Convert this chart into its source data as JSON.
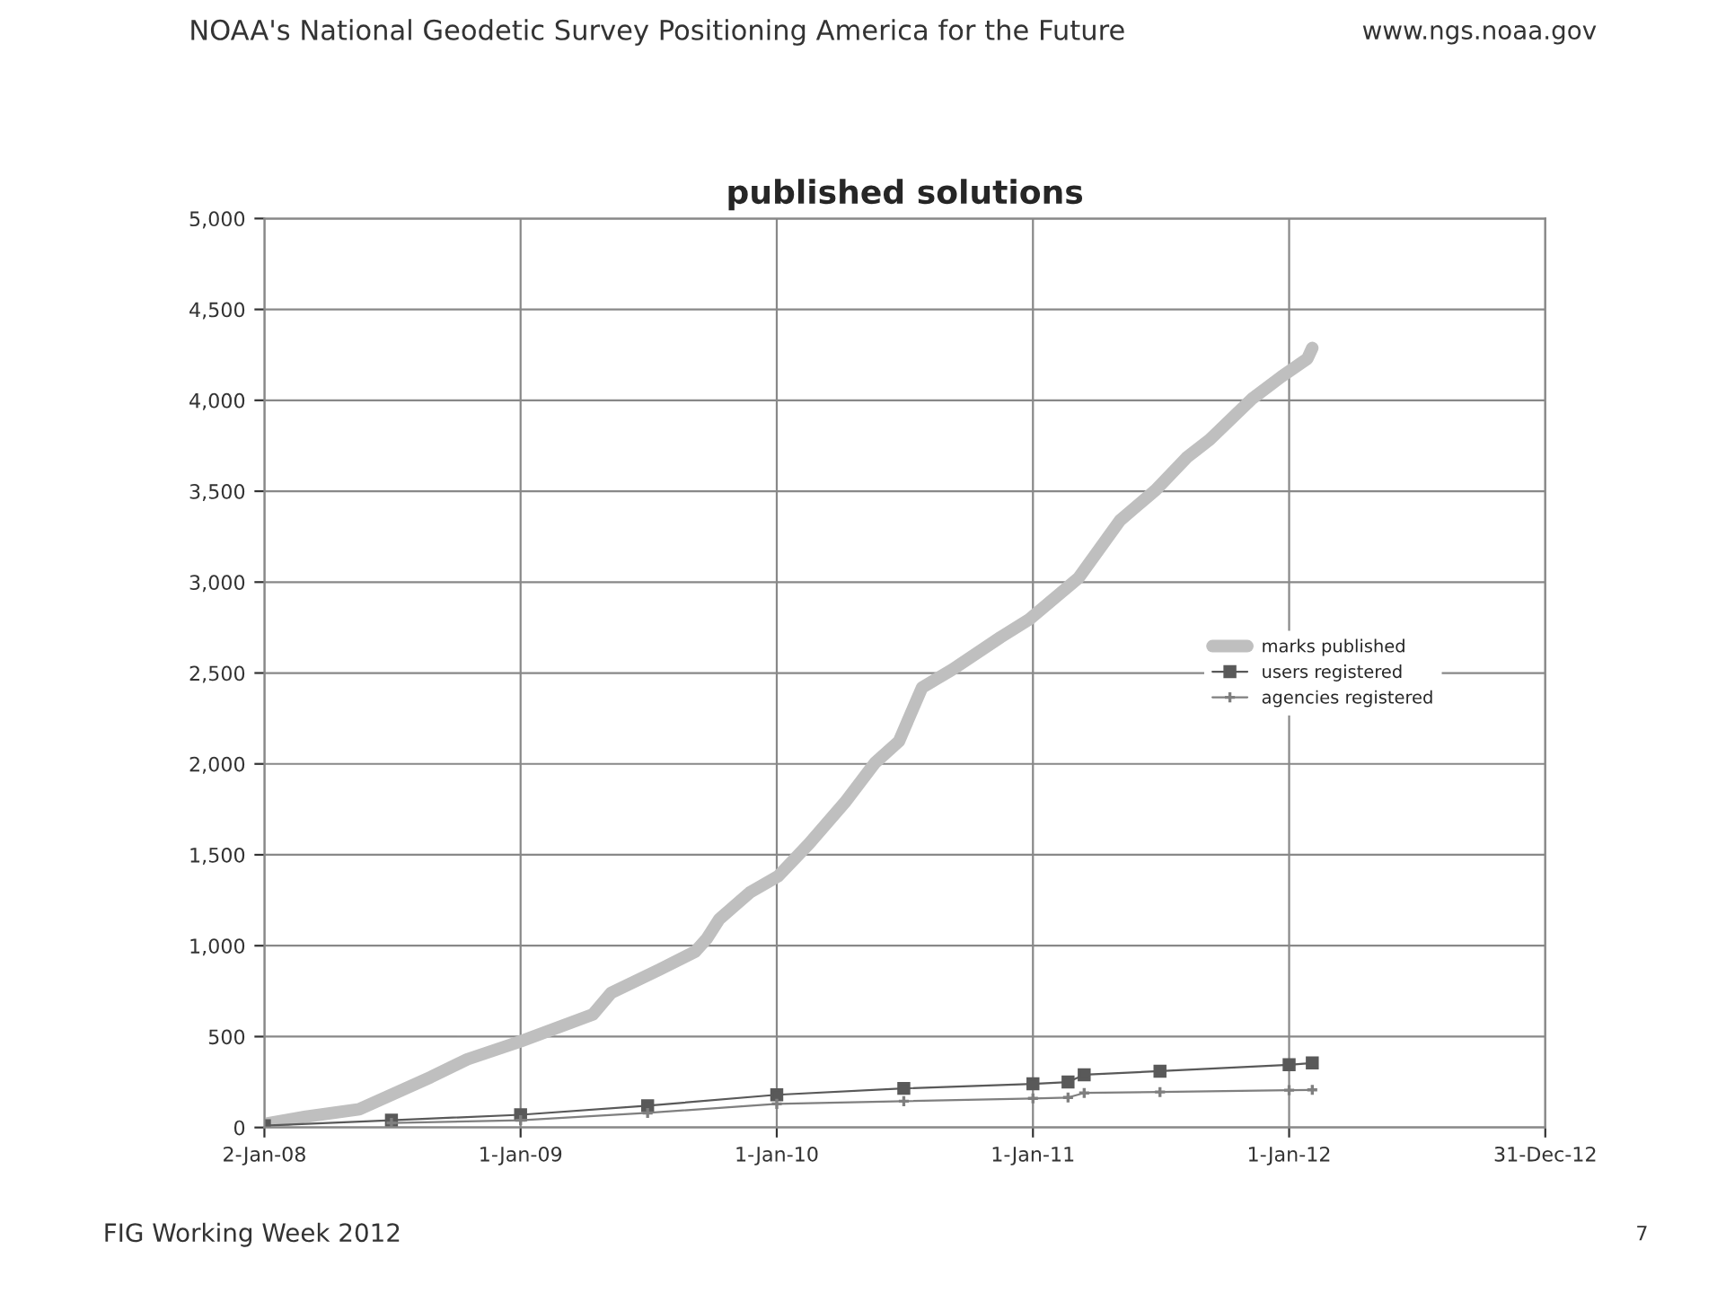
{
  "chart_data": {
    "type": "line",
    "title": "published solutions",
    "xlim": [
      "2008-01-02",
      "2012-12-31"
    ],
    "xticks": [
      {
        "value": "2008-01-02",
        "label": "2-Jan-08"
      },
      {
        "value": "2009-01-01",
        "label": "1-Jan-09"
      },
      {
        "value": "2010-01-01",
        "label": "1-Jan-10"
      },
      {
        "value": "2011-01-01",
        "label": "1-Jan-11"
      },
      {
        "value": "2012-01-01",
        "label": "1-Jan-12"
      },
      {
        "value": "2012-12-31",
        "label": "31-Dec-12"
      }
    ],
    "ylim": [
      0,
      5000
    ],
    "yticks": [
      0,
      500,
      {
        "value": 1000,
        "label": "1,000"
      },
      {
        "value": 1500,
        "label": "1,500"
      },
      {
        "value": 2000,
        "label": "2,000"
      },
      {
        "value": 2500,
        "label": "2,500"
      },
      {
        "value": 3000,
        "label": "3,000"
      },
      {
        "value": 3500,
        "label": "3,500"
      },
      {
        "value": 4000,
        "label": "4,000"
      },
      {
        "value": 4500,
        "label": "4,500"
      },
      {
        "value": 5000,
        "label": "5,000"
      }
    ],
    "grid": true,
    "legend": "right",
    "series": [
      {
        "name": "marks published",
        "color": "#bfbfbf",
        "marker": "none",
        "x": [
          "2008-01-02",
          "2008-03-01",
          "2008-05-16",
          "2008-08-26",
          "2008-10-17",
          "2009-01-01",
          "2009-04-14",
          "2009-05-10",
          "2009-07-18",
          "2009-09-07",
          "2009-09-23",
          "2009-10-11",
          "2009-11-24",
          "2010-01-03",
          "2010-02-16",
          "2010-04-08",
          "2010-05-21",
          "2010-06-24",
          "2010-07-27",
          "2010-09-08",
          "2010-11-16",
          "2010-12-27",
          "2011-03-07",
          "2011-05-05",
          "2011-06-25",
          "2011-08-08",
          "2011-09-10",
          "2011-11-10",
          "2011-12-21",
          "2012-01-27",
          "2012-02-03"
        ],
        "values": [
          20,
          60,
          100,
          277,
          375,
          474,
          622,
          741,
          869,
          968,
          1037,
          1146,
          1294,
          1383,
          1561,
          1788,
          2006,
          2124,
          2420,
          2519,
          2697,
          2796,
          3023,
          3339,
          3507,
          3685,
          3784,
          4011,
          4130,
          4229,
          4288
        ]
      },
      {
        "name": "users registered",
        "color": "#595959",
        "marker": "square",
        "x": [
          "2008-01-02",
          "2008-07-01",
          "2009-01-01",
          "2009-07-01",
          "2010-01-01",
          "2010-07-01",
          "2011-01-01",
          "2011-02-20",
          "2011-03-15",
          "2011-07-01",
          "2012-01-01",
          "2012-02-03"
        ],
        "values": [
          10,
          40,
          70,
          120,
          180,
          215,
          240,
          250,
          290,
          310,
          345,
          355
        ]
      },
      {
        "name": "agencies registered",
        "color": "#7f7f7f",
        "marker": "cross",
        "x": [
          "2008-07-01",
          "2009-01-01",
          "2009-07-01",
          "2010-01-01",
          "2010-07-01",
          "2011-01-01",
          "2011-02-20",
          "2011-03-15",
          "2011-07-01",
          "2012-01-01",
          "2012-02-03"
        ],
        "values": [
          25,
          40,
          80,
          130,
          145,
          160,
          165,
          190,
          195,
          205,
          207
        ]
      }
    ],
    "annotations": [
      "NOAA's National Geodetic Survey Positioning America for the Future",
      "www.ngs.noaa.gov",
      "FIG Working Week 2012",
      "7"
    ]
  }
}
